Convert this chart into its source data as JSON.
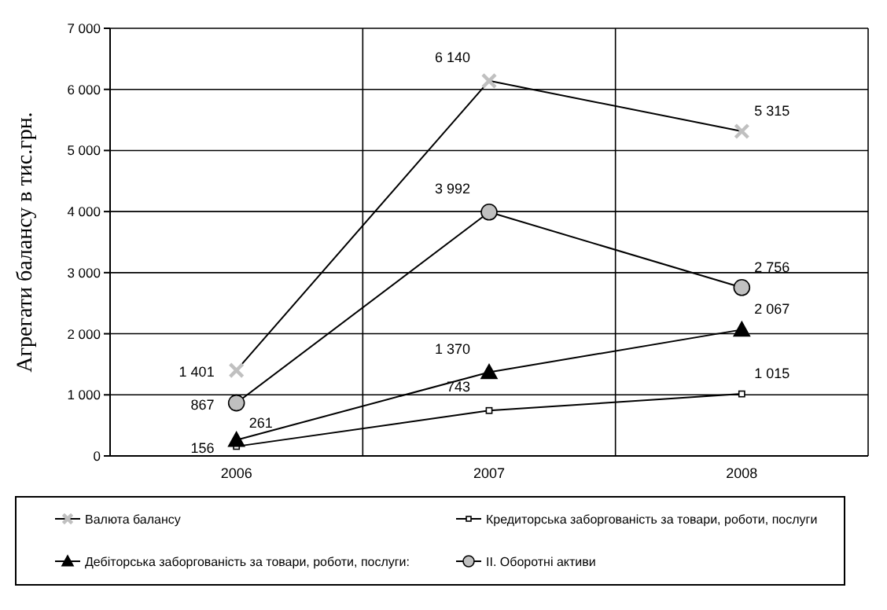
{
  "chart_data": {
    "type": "line",
    "ylabel": "Агрегати балансу в тис.грн.",
    "categories": [
      "2006",
      "2007",
      "2008"
    ],
    "ylim": [
      0,
      7000
    ],
    "yticks": [
      {
        "value": 0,
        "label": "0"
      },
      {
        "value": 1000,
        "label": "1 000"
      },
      {
        "value": 2000,
        "label": "2 000"
      },
      {
        "value": 3000,
        "label": "3 000"
      },
      {
        "value": 4000,
        "label": "4 000"
      },
      {
        "value": 5000,
        "label": "5 000"
      },
      {
        "value": 6000,
        "label": "6 000"
      },
      {
        "value": 7000,
        "label": "7 000"
      }
    ],
    "grid": true,
    "legend": "bottom",
    "data_labels": true,
    "series": [
      {
        "name": "Валюта балансу",
        "color": "#c0c0c0",
        "marker": "cross",
        "values": [
          1401,
          6140,
          5315
        ],
        "value_labels": [
          "1 401",
          "6 140",
          "5 315"
        ]
      },
      {
        "name": "Кредиторська заборгованість за товари, роботи, послуги",
        "color": "#ffffff",
        "marker": "square",
        "values": [
          156,
          743,
          1015
        ],
        "value_labels": [
          "156",
          "743",
          "1 015"
        ]
      },
      {
        "name": "Дебіторська заборгованість за товари, роботи, послуги:",
        "color": "#000000",
        "marker": "triangle",
        "values": [
          261,
          1370,
          2067
        ],
        "value_labels": [
          "261",
          "1 370",
          "2 067"
        ]
      },
      {
        "name": "ІІ. Оборотні активи",
        "color": "#c0c0c0",
        "marker": "circle",
        "values": [
          867,
          3992,
          2756
        ],
        "value_labels": [
          "867",
          "3 992",
          "2 756"
        ]
      }
    ]
  }
}
